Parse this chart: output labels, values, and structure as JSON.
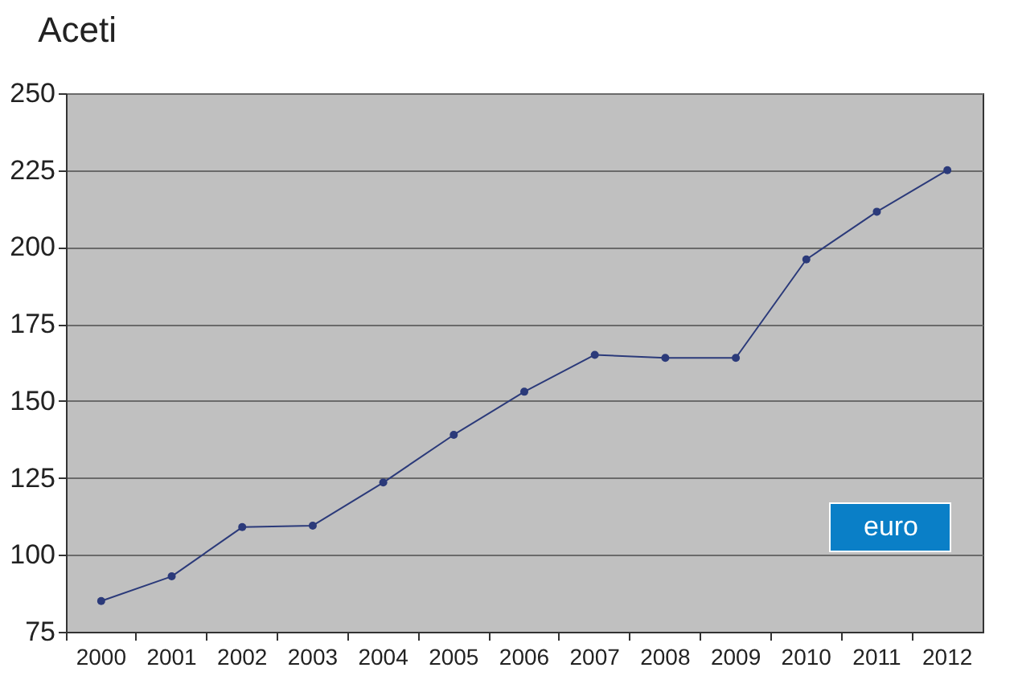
{
  "chart_data": {
    "type": "line",
    "title": "Aceti",
    "categories": [
      "2000",
      "2001",
      "2002",
      "2003",
      "2004",
      "2005",
      "2006",
      "2007",
      "2008",
      "2009",
      "2010",
      "2011",
      "2012"
    ],
    "series": [
      {
        "color": "#2b3a7a",
        "values": [
          85,
          93,
          109,
          109.5,
          123.5,
          139,
          153,
          165,
          164,
          164,
          196,
          211.5,
          225
        ]
      }
    ],
    "annotations": [
      "euro"
    ],
    "ylim": [
      75,
      250
    ],
    "yticks": [
      75,
      100,
      125,
      150,
      175,
      200,
      225,
      250
    ],
    "grid": "y",
    "marker": "circle",
    "line_style": "solid",
    "legend": false
  }
}
